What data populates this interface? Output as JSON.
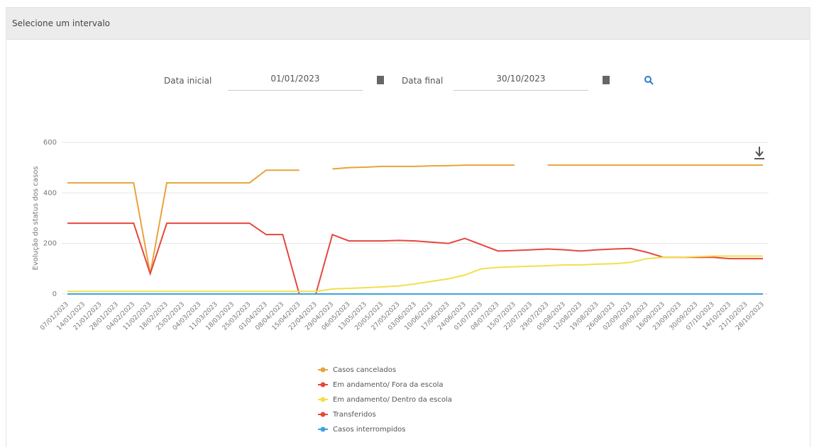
{
  "filter": {
    "header": "Selecione um intervalo",
    "start_label": "Data inicial",
    "start_value": "01/01/2023",
    "end_label": "Data final",
    "end_value": "30/10/2023"
  },
  "chart_data": {
    "type": "line",
    "y_label": "Evolução do status dos casos",
    "categories": [
      "07/01/2023",
      "14/01/2023",
      "21/01/2023",
      "28/01/2023",
      "04/02/2023",
      "11/02/2023",
      "18/02/2023",
      "25/02/2023",
      "04/03/2023",
      "11/03/2023",
      "18/03/2023",
      "25/03/2023",
      "01/04/2023",
      "08/04/2023",
      "15/04/2023",
      "22/04/2023",
      "29/04/2023",
      "06/05/2023",
      "13/05/2023",
      "20/05/2023",
      "27/05/2023",
      "03/06/2023",
      "10/06/2023",
      "17/06/2023",
      "24/06/2023",
      "01/07/2023",
      "08/07/2023",
      "15/07/2023",
      "22/07/2023",
      "29/07/2023",
      "05/08/2023",
      "12/08/2023",
      "19/08/2023",
      "26/08/2023",
      "02/09/2023",
      "09/09/2023",
      "16/09/2023",
      "23/09/2023",
      "30/09/2023",
      "07/10/2023",
      "14/10/2023",
      "21/10/2023",
      "28/10/2023"
    ],
    "series": [
      {
        "name": "Casos cancelados",
        "color": "#e8a33c",
        "values": [
          440,
          440,
          440,
          440,
          440,
          80,
          440,
          440,
          440,
          440,
          440,
          440,
          490,
          490,
          490,
          null,
          495,
          500,
          502,
          505,
          505,
          505,
          507,
          508,
          510,
          510,
          510,
          510,
          null,
          510,
          510,
          510,
          510,
          510,
          510,
          510,
          510,
          510,
          510,
          510,
          510,
          510,
          510
        ]
      },
      {
        "name": "Em andamento/ Fora da escola",
        "color": "#e5483f",
        "values": [
          280,
          280,
          280,
          280,
          280,
          80,
          280,
          280,
          280,
          280,
          280,
          280,
          235,
          235,
          0,
          0,
          235,
          210,
          210,
          210,
          212,
          210,
          205,
          200,
          220,
          195,
          170,
          172,
          175,
          178,
          175,
          170,
          175,
          178,
          180,
          165,
          145,
          145,
          145,
          145,
          140,
          140,
          140
        ]
      },
      {
        "name": "Em andamento/ Dentro da escola",
        "color": "#f3df4a",
        "values": [
          10,
          10,
          10,
          10,
          10,
          10,
          10,
          10,
          10,
          10,
          10,
          10,
          10,
          10,
          10,
          10,
          20,
          22,
          25,
          28,
          32,
          40,
          50,
          60,
          75,
          100,
          105,
          108,
          110,
          112,
          115,
          115,
          118,
          120,
          125,
          140,
          145,
          145,
          148,
          150,
          150,
          150,
          150
        ]
      },
      {
        "name": "Transferidos",
        "color": "#e54a3c",
        "values": [
          0,
          0,
          0,
          0,
          0,
          0,
          0,
          0,
          0,
          0,
          0,
          0,
          0,
          0,
          0,
          0,
          0,
          0,
          0,
          0,
          0,
          0,
          0,
          0,
          0,
          0,
          0,
          0,
          0,
          0,
          0,
          0,
          0,
          0,
          0,
          0,
          0,
          0,
          0,
          0,
          0,
          0,
          0
        ]
      },
      {
        "name": "Casos interrompidos",
        "color": "#3fa3df",
        "values": [
          0,
          0,
          0,
          0,
          0,
          0,
          0,
          0,
          0,
          0,
          0,
          0,
          0,
          0,
          0,
          0,
          0,
          0,
          0,
          0,
          0,
          0,
          0,
          0,
          0,
          0,
          0,
          0,
          0,
          0,
          0,
          0,
          0,
          0,
          0,
          0,
          0,
          0,
          0,
          0,
          0,
          0,
          0
        ]
      }
    ],
    "ylim": [
      0,
      600
    ],
    "yticks": [
      0,
      200,
      400,
      600
    ],
    "grid": true
  }
}
